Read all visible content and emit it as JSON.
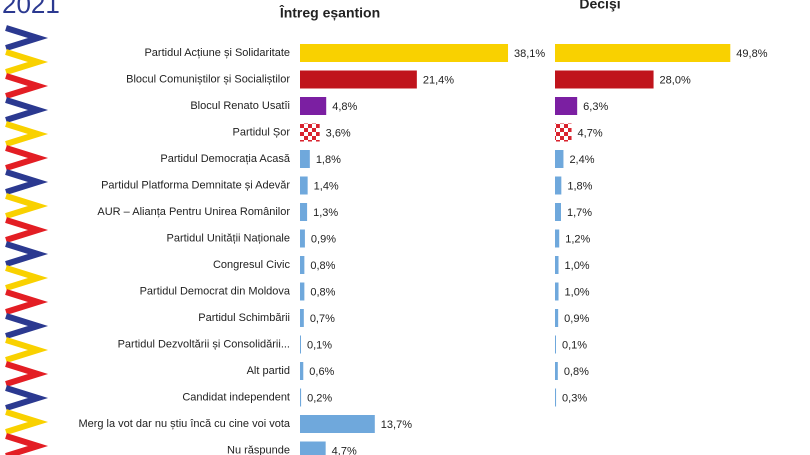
{
  "header_text": "2021",
  "chart_data": {
    "type": "bar",
    "orientation": "horizontal",
    "categories": [
      "Partidul Acțiune și Solidaritate",
      "Blocul Comuniștilor și Socialiștilor",
      "Blocul Renato Usatîi",
      "Partidul Șor",
      "Partidul Democrația Acasă",
      "Partidul Platforma Demnitate și Adevăr",
      "AUR – Alianța Pentru Unirea Românilor",
      "Partidul Unității Naționale",
      "Congresul Civic",
      "Partidul Democrat din Moldova",
      "Partidul Schimbării",
      "Partidul Dezvoltării și Consolidării...",
      "Alt partid",
      "Candidat independent",
      "Merg la vot dar nu știu încă cu cine voi vota",
      "Nu răspunde"
    ],
    "colors": [
      "#f9d100",
      "#c0141c",
      "#7b1fa2",
      "#d9232e",
      "#6fa8dc",
      "#6fa8dc",
      "#6fa8dc",
      "#6fa8dc",
      "#6fa8dc",
      "#6fa8dc",
      "#6fa8dc",
      "#6fa8dc",
      "#6fa8dc",
      "#6fa8dc",
      "#6fa8dc",
      "#6fa8dc"
    ],
    "checkered": [
      3
    ],
    "series": [
      {
        "name": "Întreg eșantion",
        "values": [
          38.1,
          21.4,
          4.8,
          3.6,
          1.8,
          1.4,
          1.3,
          0.9,
          0.8,
          0.8,
          0.7,
          0.1,
          0.6,
          0.2,
          13.7,
          4.7
        ],
        "value_labels": [
          "38,1%",
          "21,4%",
          "4,8%",
          "3,6%",
          "1,8%",
          "1,4%",
          "1,3%",
          "0,9%",
          "0,8%",
          "0,8%",
          "0,7%",
          "0,1%",
          "0,6%",
          "0,2%",
          "13,7%",
          "4,7%"
        ]
      },
      {
        "name": "Decişi",
        "values": [
          49.8,
          28.0,
          6.3,
          4.7,
          2.4,
          1.8,
          1.7,
          1.2,
          1.0,
          1.0,
          0.9,
          0.1,
          0.8,
          0.3,
          null,
          null
        ],
        "value_labels": [
          "49,8%",
          "28,0%",
          "6,3%",
          "4,7%",
          "2,4%",
          "1,8%",
          "1,7%",
          "1,2%",
          "1,0%",
          "1,0%",
          "0,9%",
          "0,1%",
          "0,8%",
          "0,3%",
          null,
          null
        ]
      }
    ]
  }
}
